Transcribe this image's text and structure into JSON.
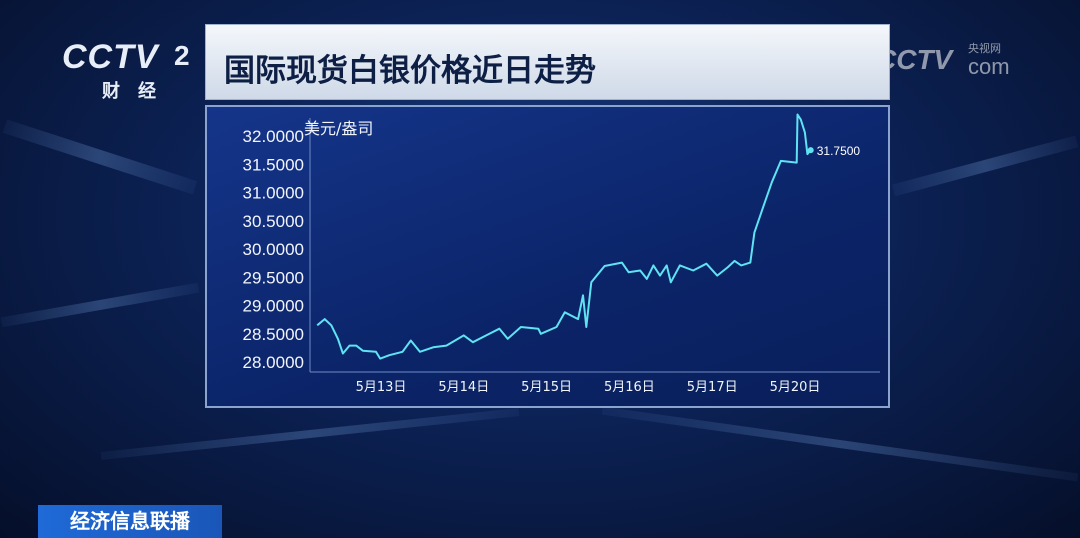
{
  "channel_logo": {
    "brand": "CCTV",
    "number": "2",
    "subtitle": "财经"
  },
  "watermark": {
    "brand": "CCTV",
    "site": "央视网",
    "domain": "com"
  },
  "title": "国际现货白银价格近日走势",
  "program_banner": "经济信息联播",
  "chart_data": {
    "type": "line",
    "title": "国际现货白银价格近日走势",
    "ylabel": "美元/盎司",
    "ylim": [
      28.0,
      32.0
    ],
    "yticks": [
      "28.0000",
      "28.5000",
      "29.0000",
      "29.5000",
      "30.0000",
      "30.5000",
      "31.0000",
      "31.5000",
      "32.0000"
    ],
    "ytick_values": [
      28,
      28.5,
      29,
      29.5,
      30,
      30.5,
      31,
      31.5,
      32
    ],
    "xticks": [
      "5月13日",
      "5月14日",
      "5月15日",
      "5月16日",
      "5月17日",
      "5月20日"
    ],
    "xtick_positions": [
      1,
      2,
      3,
      4,
      5,
      6
    ],
    "grid": false,
    "line_color": "#5fe3f2",
    "last_value_label": "31.7500",
    "series": [
      {
        "points": [
          [
            0.23,
            28.65
          ],
          [
            0.32,
            28.76
          ],
          [
            0.4,
            28.65
          ],
          [
            0.48,
            28.41
          ],
          [
            0.54,
            28.15
          ],
          [
            0.62,
            28.29
          ],
          [
            0.7,
            28.29
          ],
          [
            0.78,
            28.2
          ],
          [
            0.94,
            28.18
          ],
          [
            0.99,
            28.06
          ],
          [
            1.1,
            28.12
          ],
          [
            1.26,
            28.18
          ],
          [
            1.36,
            28.38
          ],
          [
            1.47,
            28.18
          ],
          [
            1.63,
            28.26
          ],
          [
            1.79,
            28.29
          ],
          [
            2.0,
            28.47
          ],
          [
            2.11,
            28.35
          ],
          [
            2.27,
            28.47
          ],
          [
            2.43,
            28.59
          ],
          [
            2.53,
            28.41
          ],
          [
            2.69,
            28.62
          ],
          [
            2.9,
            28.59
          ],
          [
            2.93,
            28.5
          ],
          [
            3.12,
            28.62
          ],
          [
            3.22,
            28.88
          ],
          [
            3.38,
            28.76
          ],
          [
            3.44,
            29.18
          ],
          [
            3.48,
            28.62
          ],
          [
            3.54,
            29.41
          ],
          [
            3.7,
            29.7
          ],
          [
            3.91,
            29.76
          ],
          [
            3.99,
            29.59
          ],
          [
            4.13,
            29.62
          ],
          [
            4.21,
            29.47
          ],
          [
            4.29,
            29.71
          ],
          [
            4.37,
            29.53
          ],
          [
            4.45,
            29.71
          ],
          [
            4.5,
            29.41
          ],
          [
            4.61,
            29.71
          ],
          [
            4.77,
            29.62
          ],
          [
            4.93,
            29.74
          ],
          [
            5.06,
            29.53
          ],
          [
            5.19,
            29.68
          ],
          [
            5.27,
            29.79
          ],
          [
            5.35,
            29.71
          ],
          [
            5.46,
            29.76
          ],
          [
            5.51,
            30.29
          ],
          [
            5.62,
            30.76
          ],
          [
            5.72,
            31.18
          ],
          [
            5.83,
            31.56
          ],
          [
            6.02,
            31.53
          ],
          [
            6.03,
            32.38
          ],
          [
            6.07,
            32.29
          ],
          [
            6.12,
            32.06
          ],
          [
            6.15,
            31.68
          ],
          [
            6.19,
            31.75
          ]
        ]
      }
    ]
  }
}
